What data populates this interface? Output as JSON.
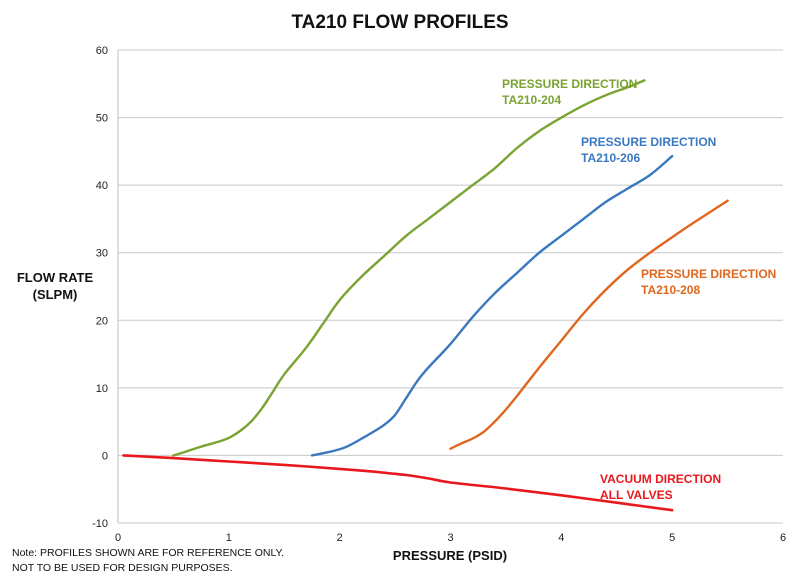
{
  "chart_data": {
    "type": "line",
    "title": "TA210 FLOW PROFILES",
    "xlabel": "PRESSURE (PSID)",
    "ylabel": [
      "FLOW RATE",
      "(SLPM)"
    ],
    "xlim": [
      0,
      6
    ],
    "ylim": [
      -10,
      60
    ],
    "xticks": [
      0,
      1,
      2,
      3,
      4,
      5,
      6
    ],
    "yticks": [
      -10,
      0,
      10,
      20,
      30,
      40,
      50,
      60
    ],
    "grid": "horizontal",
    "legend": "inline labels",
    "note": [
      "Note: PROFILES SHOWN ARE FOR REFERENCE ONLY.",
      "NOT TO BE USED FOR DESIGN PURPOSES."
    ],
    "series": [
      {
        "name": "PRESSURE DIRECTION TA210-204",
        "label_lines": [
          "PRESSURE DIRECTION",
          "TA210-204"
        ],
        "color": "#7aa332",
        "x": [
          0.5,
          0.6,
          0.75,
          0.9,
          1.0,
          1.1,
          1.2,
          1.3,
          1.4,
          1.5,
          1.7,
          1.85,
          2.0,
          2.2,
          2.4,
          2.6,
          2.8,
          3.0,
          3.2,
          3.4,
          3.6,
          3.8,
          4.0,
          4.2,
          4.4,
          4.6,
          4.75
        ],
        "y": [
          0,
          0.5,
          1.3,
          2.0,
          2.6,
          3.6,
          5.0,
          7.0,
          9.5,
          12.0,
          16.0,
          19.5,
          23.0,
          26.5,
          29.5,
          32.5,
          35.0,
          37.5,
          40.0,
          42.5,
          45.5,
          48.0,
          50.0,
          51.8,
          53.3,
          54.5,
          55.5
        ]
      },
      {
        "name": "PRESSURE DIRECTION TA210-206",
        "label_lines": [
          "PRESSURE DIRECTION",
          "TA210-206"
        ],
        "color": "#3a78c0",
        "x": [
          1.75,
          1.9,
          2.05,
          2.2,
          2.4,
          2.5,
          2.6,
          2.7,
          2.8,
          3.0,
          3.2,
          3.4,
          3.6,
          3.8,
          4.0,
          4.2,
          4.4,
          4.6,
          4.8,
          5.0
        ],
        "y": [
          0,
          0.5,
          1.2,
          2.5,
          4.5,
          6.0,
          8.5,
          11.0,
          13.0,
          16.5,
          20.5,
          24.0,
          27.0,
          30.0,
          32.5,
          35.0,
          37.5,
          39.5,
          41.5,
          44.3
        ]
      },
      {
        "name": "PRESSURE DIRECTION TA210-208",
        "label_lines": [
          "PRESSURE DIRECTION",
          "TA210-208"
        ],
        "color": "#e0661e",
        "x": [
          3.0,
          3.1,
          3.2,
          3.3,
          3.4,
          3.5,
          3.6,
          3.8,
          4.0,
          4.2,
          4.4,
          4.6,
          4.8,
          5.0,
          5.2,
          5.5
        ],
        "y": [
          1.0,
          1.8,
          2.5,
          3.5,
          5.0,
          6.8,
          8.8,
          13.0,
          17.0,
          21.0,
          24.5,
          27.5,
          30.0,
          32.3,
          34.5,
          37.7
        ]
      },
      {
        "name": "VACUUM DIRECTION ALL VALVES",
        "label_lines": [
          "VACUUM DIRECTION",
          "ALL VALVES"
        ],
        "color": "#e8181c",
        "x": [
          0.05,
          0.5,
          1.0,
          1.5,
          2.0,
          2.3,
          2.6,
          2.8,
          3.0,
          3.5,
          4.0,
          4.5,
          5.0
        ],
        "y": [
          0,
          -0.4,
          -0.9,
          -1.4,
          -2.0,
          -2.4,
          -2.9,
          -3.4,
          -4.0,
          -4.9,
          -5.9,
          -7.0,
          -8.1
        ]
      }
    ]
  }
}
